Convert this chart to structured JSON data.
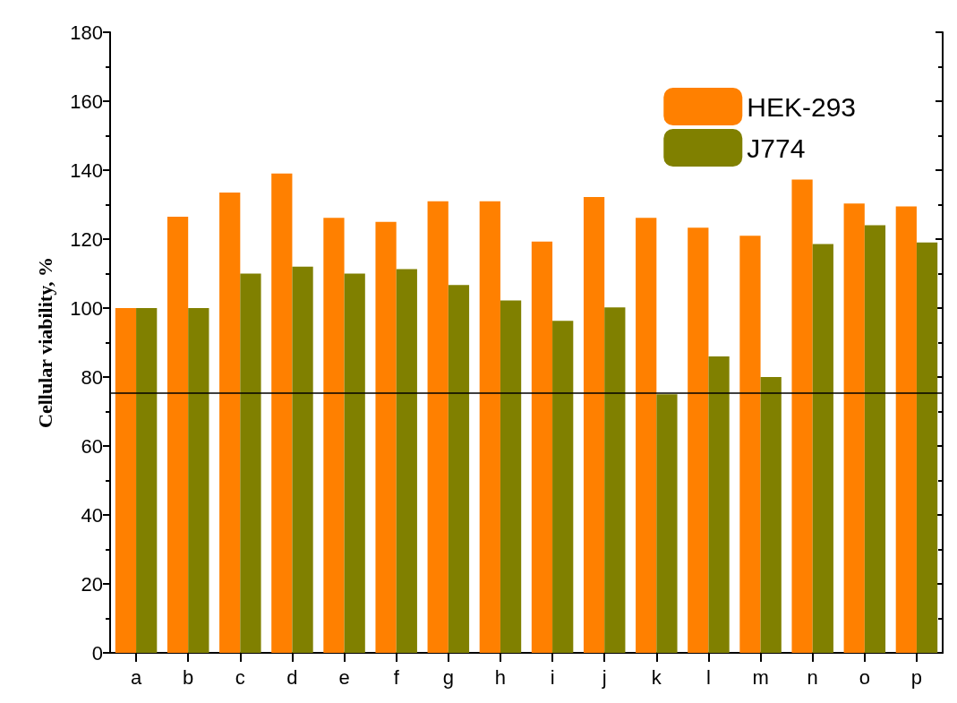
{
  "chart_data": {
    "type": "bar",
    "ylabel": "Cellular viability, %",
    "categories": [
      "a",
      "b",
      "c",
      "d",
      "e",
      "f",
      "g",
      "h",
      "i",
      "j",
      "k",
      "l",
      "m",
      "n",
      "o",
      "p"
    ],
    "series": [
      {
        "name": "HEK-293",
        "color": "#ff8000",
        "values": [
          100,
          126.5,
          133.5,
          139,
          126.2,
          125,
          131,
          131,
          119.3,
          132.2,
          126.2,
          123.3,
          121,
          137.3,
          130.3,
          129.5
        ]
      },
      {
        "name": "J774",
        "color": "#808000",
        "values": [
          100,
          100,
          110,
          112,
          110,
          111.3,
          106.7,
          102.2,
          96.3,
          100.2,
          75,
          86,
          80,
          118.6,
          124,
          119
        ]
      }
    ],
    "ylim": [
      0,
      180
    ],
    "yticks": [
      0,
      20,
      40,
      60,
      80,
      100,
      120,
      140,
      160,
      180
    ],
    "ref_lines": [
      {
        "axis": "y",
        "value": 75.5,
        "color": "#000000",
        "line_style": "solid"
      }
    ],
    "grid": false,
    "legend": "top right"
  }
}
